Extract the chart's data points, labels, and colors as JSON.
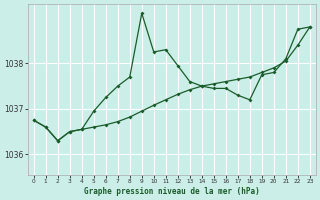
{
  "title": "Graphe pression niveau de la mer (hPa)",
  "background_color": "#cceee8",
  "grid_color": "#ffffff",
  "line_color": "#1a5c2a",
  "xlim": [
    -0.5,
    23.5
  ],
  "ylim": [
    1035.55,
    1039.3
  ],
  "yticks": [
    1036,
    1037,
    1038
  ],
  "xticks": [
    0,
    1,
    2,
    3,
    4,
    5,
    6,
    7,
    8,
    9,
    10,
    11,
    12,
    13,
    14,
    15,
    16,
    17,
    18,
    19,
    20,
    21,
    22,
    23
  ],
  "series1_x": [
    0,
    1,
    2,
    3,
    4,
    5,
    6,
    7,
    8,
    9,
    10,
    11,
    12,
    13,
    14,
    15,
    16,
    17,
    18,
    19,
    20,
    21,
    22,
    23
  ],
  "series1_y": [
    1036.75,
    1036.6,
    1036.3,
    1036.5,
    1036.55,
    1036.95,
    1037.25,
    1037.5,
    1037.7,
    1039.1,
    1038.25,
    1038.3,
    1037.95,
    1037.6,
    1037.5,
    1037.45,
    1037.45,
    1037.3,
    1037.2,
    1037.75,
    1037.8,
    1038.1,
    1038.75,
    1038.8
  ],
  "series2_x": [
    0,
    1,
    2,
    3,
    4,
    5,
    6,
    7,
    8,
    9,
    10,
    11,
    12,
    13,
    14,
    15,
    16,
    17,
    18,
    19,
    20,
    21,
    22,
    23
  ],
  "series2_y": [
    1036.75,
    1036.6,
    1036.3,
    1036.5,
    1036.55,
    1036.6,
    1036.65,
    1036.72,
    1036.82,
    1036.95,
    1037.08,
    1037.2,
    1037.32,
    1037.42,
    1037.5,
    1037.55,
    1037.6,
    1037.65,
    1037.7,
    1037.8,
    1037.9,
    1038.05,
    1038.4,
    1038.8
  ]
}
